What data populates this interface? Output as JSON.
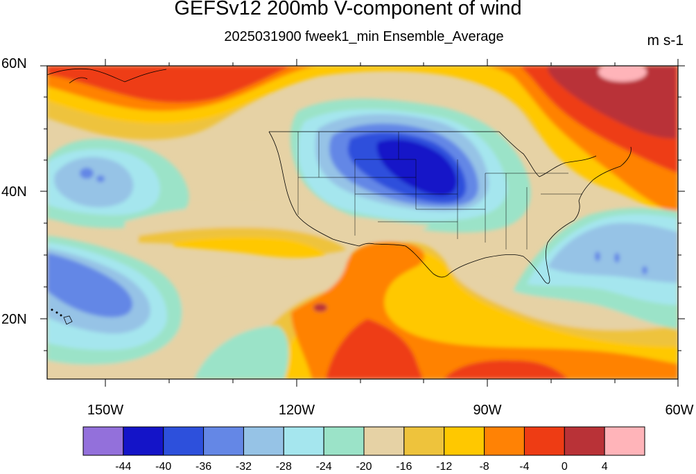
{
  "title": "GEFSv12 200mb V-component of wind",
  "subtitle": "2025031900 fweek1_min Ensemble_Average",
  "units": "m s-1",
  "lat_labels": [
    "60N",
    "40N",
    "20N"
  ],
  "lon_labels": [
    "150W",
    "120W",
    "90W",
    "60W"
  ],
  "colorbar": {
    "colors": [
      "#9370db",
      "#1414c8",
      "#2d50dc",
      "#6487e6",
      "#96c3e6",
      "#a5e6ee",
      "#9be3c8",
      "#e6d2a5",
      "#eec33c",
      "#ffc800",
      "#ff8205",
      "#ee3c14",
      "#b93237",
      "#ffb4b9"
    ],
    "labels": [
      "-44",
      "-40",
      "-36",
      "-32",
      "-28",
      "-24",
      "-20",
      "-16",
      "-12",
      "-8",
      "-4",
      "0",
      "4"
    ]
  }
}
